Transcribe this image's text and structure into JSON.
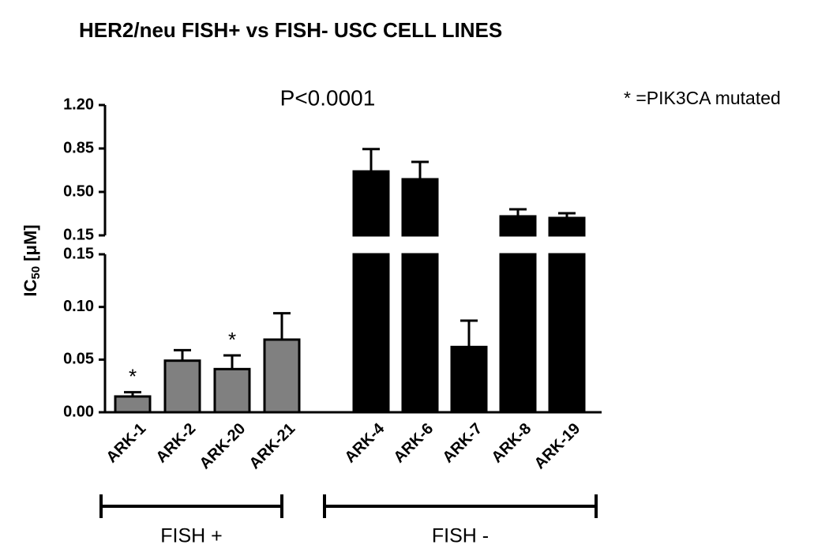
{
  "chart_data": {
    "type": "bar",
    "title": "HER2/neu FISH+ vs FISH- USC CELL LINES",
    "annotation": "P<0.0001",
    "legend_note": "* =PIK3CA mutated",
    "ylabel": [
      "IC",
      "50",
      " [μM]"
    ],
    "axis_segments": [
      {
        "ylim": [
          0,
          0.15
        ],
        "yticks": [
          {
            "value": 0,
            "label": "0.00"
          },
          0.05,
          {
            "value": 0.1,
            "label": "0.10"
          },
          0.15
        ]
      },
      {
        "ylim": [
          0.15,
          1.2
        ],
        "yticks": [
          0.15,
          {
            "value": 0.5,
            "label": "0.50"
          },
          0.85,
          {
            "value": 1.2,
            "label": "1.20"
          }
        ]
      }
    ],
    "groups": [
      {
        "label": "FISH +",
        "color": "#808080",
        "categories": [
          "ARK-1",
          "ARK-2",
          "ARK-20",
          "ARK-21"
        ],
        "values": [
          0.015,
          0.049,
          0.041,
          0.069
        ],
        "errors": [
          0.004,
          0.01,
          0.013,
          0.025
        ],
        "markers": [
          "*",
          null,
          "*",
          null
        ]
      },
      {
        "label": "FISH -",
        "color": "#000000",
        "categories": [
          "ARK-4",
          "ARK-6",
          "ARK-7",
          "ARK-8",
          "ARK-19"
        ],
        "values": [
          0.665,
          0.602,
          0.062,
          0.303,
          0.29
        ],
        "errors": [
          0.18,
          0.14,
          0.025,
          0.057,
          0.038
        ],
        "markers": [
          null,
          null,
          null,
          null,
          null
        ]
      }
    ]
  }
}
